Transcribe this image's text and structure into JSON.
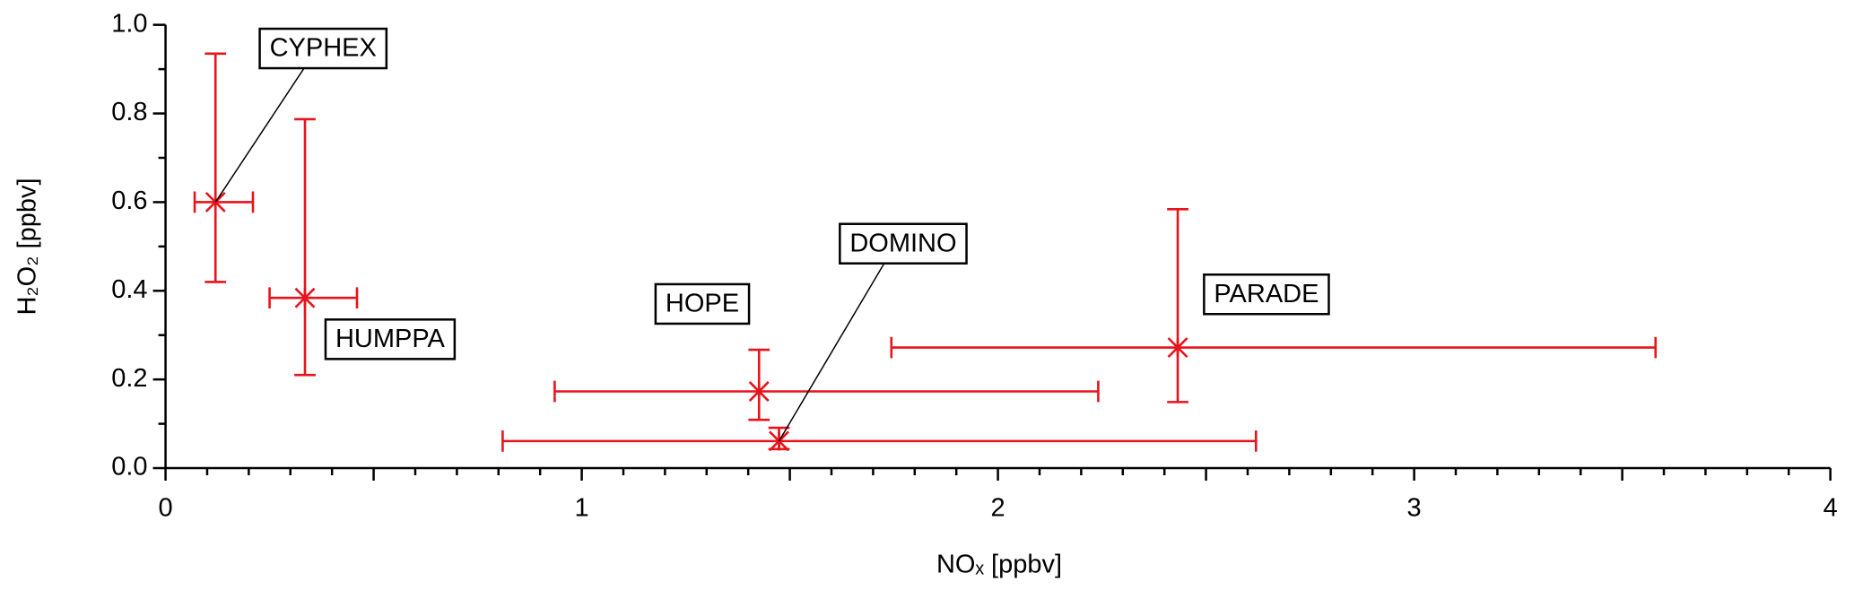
{
  "chart_data": {
    "type": "scatter",
    "x_label": "NOₓ [ppbv]",
    "y_label": "H₂O₂ [ppbv]",
    "color": "#e8131b",
    "xlim": [
      0,
      4
    ],
    "xticks": [
      0,
      1,
      2,
      3,
      4
    ],
    "ylim": [
      0,
      1
    ],
    "yticks": [
      {
        "value": 0,
        "label": "0.0"
      },
      0.2,
      0.4,
      0.6,
      0.8,
      {
        "value": 1,
        "label": "1.0"
      }
    ],
    "points": [
      {
        "name": "CYPHEX",
        "x": 0.12,
        "y": 0.6,
        "xerr_minus": 0.05,
        "xerr_plus": 0.09,
        "yerr_minus": 0.18,
        "yerr_plus": 0.335
      },
      {
        "name": "HUMPPA",
        "x": 0.335,
        "y": 0.384,
        "xerr_minus": 0.085,
        "xerr_plus": 0.125,
        "yerr_minus": 0.174,
        "yerr_plus": 0.403
      },
      {
        "name": "HOPE",
        "x": 1.426,
        "y": 0.173,
        "xerr_minus": 0.491,
        "xerr_plus": 0.815,
        "yerr_minus": 0.064,
        "yerr_plus": 0.094
      },
      {
        "name": "DOMINO",
        "x": 1.474,
        "y": 0.061,
        "xerr_minus": 0.664,
        "xerr_plus": 1.146,
        "yerr_minus": 0.018,
        "yerr_plus": 0.03
      },
      {
        "name": "PARADE",
        "x": 2.432,
        "y": 0.272,
        "xerr_minus": 0.688,
        "xerr_plus": 1.148,
        "yerr_minus": 0.123,
        "yerr_plus": 0.312
      }
    ]
  }
}
